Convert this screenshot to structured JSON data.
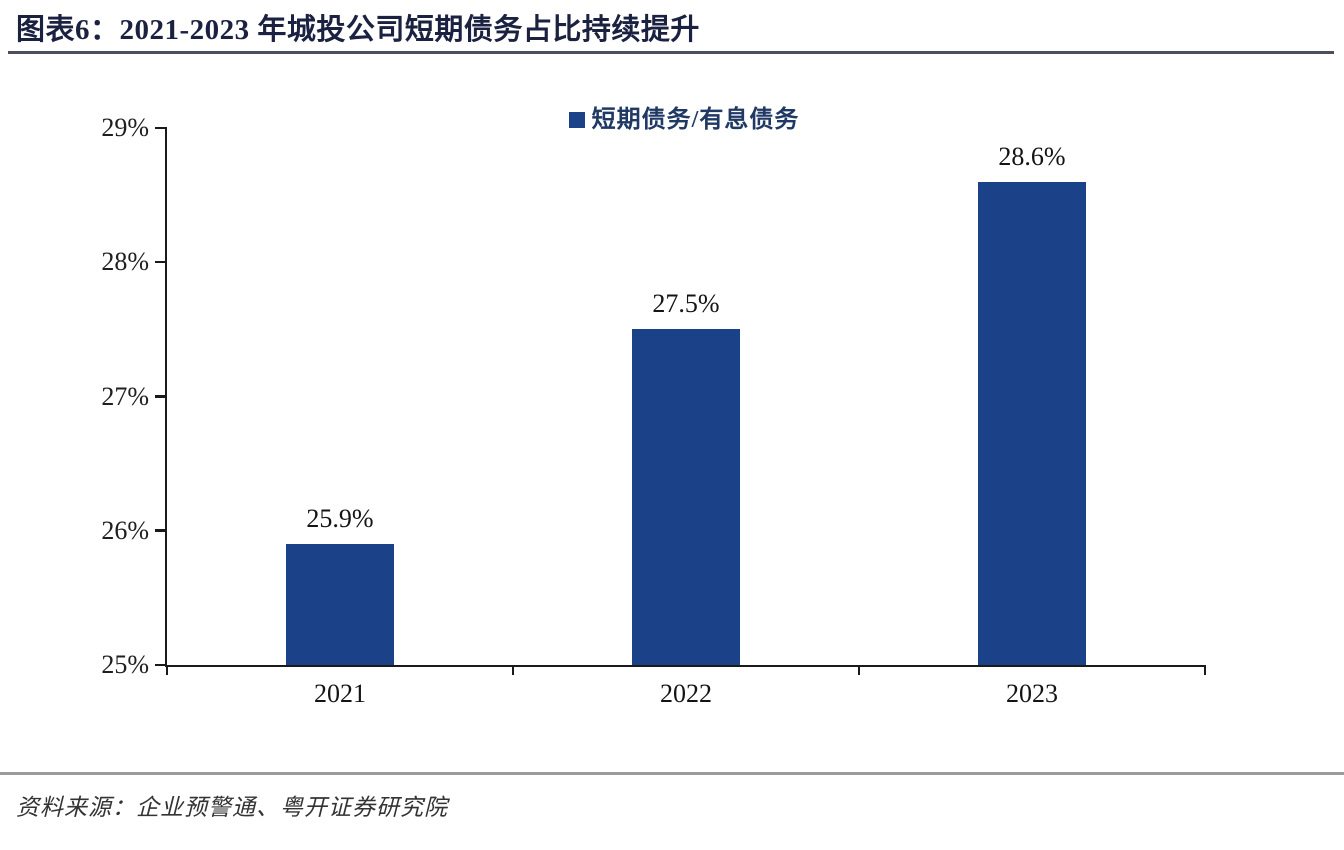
{
  "header": {
    "title": "图表6：2021-2023 年城投公司短期债务占比持续提升"
  },
  "chart_data": {
    "type": "bar",
    "title": "图表6：2021-2023 年城投公司短期债务占比持续提升",
    "categories": [
      "2021",
      "2022",
      "2023"
    ],
    "series": [
      {
        "name": "短期债务/有息债务",
        "values": [
          25.9,
          27.5,
          28.6
        ]
      }
    ],
    "data_labels": [
      "25.9%",
      "27.5%",
      "28.6%"
    ],
    "xlabel": "",
    "ylabel": "",
    "ylim": [
      25,
      29
    ],
    "yticks": [
      25,
      26,
      27,
      28,
      29
    ],
    "ytick_labels": [
      "25%",
      "26%",
      "27%",
      "28%",
      "29%"
    ],
    "grid": false,
    "legend_position": "top-center",
    "bar_color": "#1b4189"
  },
  "footer": {
    "source": "资料来源：企业预警通、粤开证券研究院"
  },
  "colors": {
    "bar": "#1b4189",
    "title_text": "#1b2140",
    "legend_text": "#1f3864",
    "axis": "#1a1a1a",
    "title_rule": "#4b4f5c",
    "footer_rule": "#9b9b9b",
    "source_text": "#333333"
  }
}
